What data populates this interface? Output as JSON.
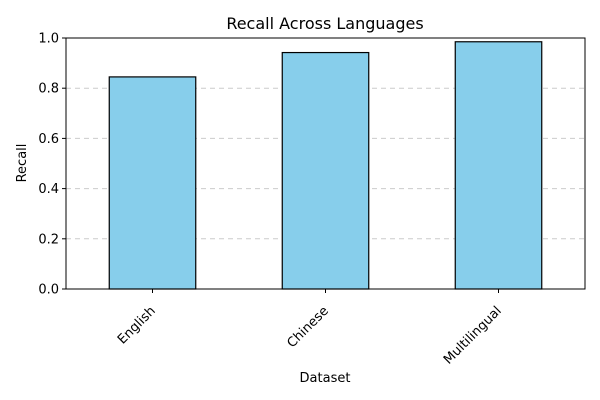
{
  "chart_data": {
    "type": "bar",
    "title": "Recall Across Languages",
    "xlabel": "Dataset",
    "ylabel": "Recall",
    "categories": [
      "English",
      "Chinese",
      "Multilingual"
    ],
    "values": [
      0.845,
      0.942,
      0.985
    ],
    "ylim": [
      0.0,
      1.0
    ],
    "yticks": [
      "0.0",
      "0.2",
      "0.4",
      "0.6",
      "0.8",
      "1.0"
    ],
    "grid": "y-dashed",
    "bar_color": "#87ceeb",
    "bar_edge_color": "#000000",
    "grid_color": "#cccccc"
  }
}
